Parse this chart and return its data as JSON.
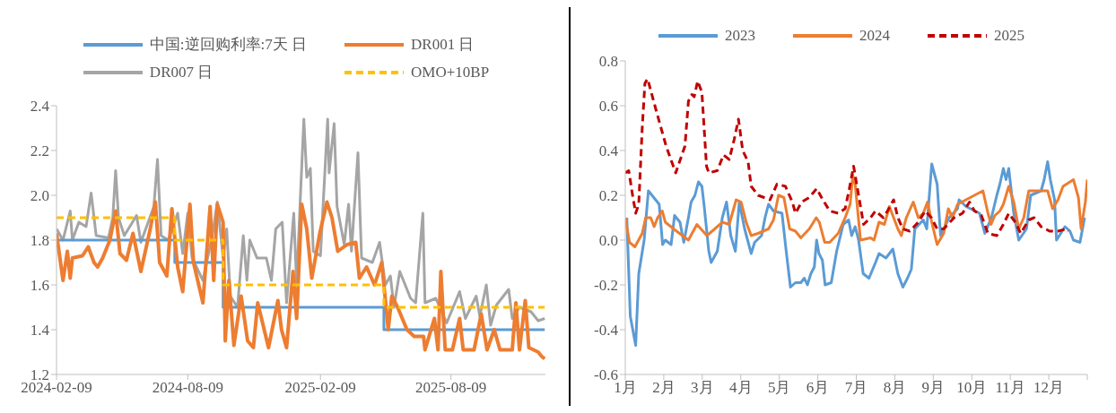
{
  "chart_data": [
    {
      "type": "line",
      "legend": "top",
      "grid": false,
      "marker": "none",
      "xlim": [
        "2024-02-09",
        "2025-12-18"
      ],
      "xticks": [
        "2024-02-09",
        "2024-08-09",
        "2025-02-09",
        "2025-08-09"
      ],
      "ylim": [
        1.2,
        2.4
      ],
      "yticks": [
        {
          "value": 1.2,
          "label": "1.2"
        },
        {
          "value": 1.4,
          "label": "1.4"
        },
        {
          "value": 1.6,
          "label": "1.6"
        },
        {
          "value": 1.8,
          "label": "1.8"
        },
        {
          "value": 2,
          "label": "2.0"
        },
        {
          "value": 2.2,
          "label": "2.2"
        },
        {
          "value": 2.4,
          "label": "2.4"
        }
      ],
      "series": [
        {
          "name": "中国:逆回购利率:7天 日",
          "type": "step",
          "color": "#5b9bd5",
          "line_style": "solid",
          "x": [
            "2024-02-09",
            "2024-07-22",
            "2024-09-27",
            "2025-05-08",
            "2025-12-17"
          ],
          "values": [
            1.8,
            1.7,
            1.5,
            1.4,
            1.4
          ]
        },
        {
          "name": "DR001 日",
          "color": "#ed7d31",
          "line_style": "solid",
          "x": [
            "2024-02-09",
            "2024-02-18",
            "2024-02-24",
            "2024-02-28",
            "2024-03-02",
            "2024-03-16",
            "2024-03-24",
            "2024-04-01",
            "2024-04-06",
            "2024-04-13",
            "2024-04-23",
            "2024-05-01",
            "2024-05-07",
            "2024-05-16",
            "2024-05-25",
            "2024-06-05",
            "2024-06-18",
            "2024-06-25",
            "2024-07-01",
            "2024-07-11",
            "2024-07-18",
            "2024-07-26",
            "2024-08-02",
            "2024-08-12",
            "2024-08-17",
            "2024-08-30",
            "2024-09-09",
            "2024-09-14",
            "2024-09-19",
            "2024-09-27",
            "2024-09-30",
            "2024-10-05",
            "2024-10-12",
            "2024-10-22",
            "2024-10-31",
            "2024-11-08",
            "2024-11-14",
            "2024-11-29",
            "2024-12-12",
            "2024-12-17",
            "2024-12-24",
            "2025-01-02",
            "2025-01-07",
            "2025-01-14",
            "2025-01-21",
            "2025-01-28",
            "2025-02-08",
            "2025-02-18",
            "2025-02-25",
            "2025-03-05",
            "2025-03-18",
            "2025-03-30",
            "2025-04-04",
            "2025-04-14",
            "2025-04-25",
            "2025-05-05",
            "2025-05-14",
            "2025-05-19",
            "2025-05-27",
            "2025-06-09",
            "2025-06-19",
            "2025-07-02",
            "2025-07-04",
            "2025-07-17",
            "2025-07-22",
            "2025-07-26",
            "2025-08-01",
            "2025-08-11",
            "2025-08-21",
            "2025-08-26",
            "2025-09-10",
            "2025-09-20",
            "2025-09-28",
            "2025-10-08",
            "2025-10-16",
            "2025-11-02",
            "2025-11-07",
            "2025-11-12",
            "2025-11-20",
            "2025-11-25",
            "2025-12-08",
            "2025-12-13",
            "2025-12-17"
          ],
          "values": [
            1.83,
            1.62,
            1.75,
            1.63,
            1.72,
            1.73,
            1.77,
            1.7,
            1.68,
            1.72,
            1.8,
            1.93,
            1.74,
            1.71,
            1.83,
            1.66,
            1.85,
            1.97,
            1.7,
            1.64,
            1.94,
            1.68,
            1.57,
            1.96,
            1.7,
            1.52,
            1.95,
            1.62,
            1.96,
            1.88,
            1.35,
            1.62,
            1.33,
            1.55,
            1.35,
            1.32,
            1.52,
            1.32,
            1.53,
            1.4,
            1.32,
            1.66,
            1.45,
            1.96,
            1.85,
            1.63,
            1.83,
            1.97,
            1.9,
            1.75,
            1.78,
            1.79,
            1.63,
            1.68,
            1.6,
            1.7,
            1.4,
            1.55,
            1.5,
            1.4,
            1.37,
            1.37,
            1.31,
            1.45,
            1.31,
            1.66,
            1.31,
            1.31,
            1.45,
            1.31,
            1.31,
            1.47,
            1.31,
            1.4,
            1.31,
            1.31,
            1.52,
            1.31,
            1.53,
            1.32,
            1.3,
            1.28,
            1.27
          ]
        },
        {
          "name": "DR007 日",
          "color": "#a5a5a5",
          "line_style": "solid",
          "x": [
            "2024-02-09",
            "2024-02-18",
            "2024-02-28",
            "2024-03-02",
            "2024-03-11",
            "2024-03-21",
            "2024-03-28",
            "2024-04-04",
            "2024-04-21",
            "2024-04-27",
            "2024-05-01",
            "2024-05-05",
            "2024-05-13",
            "2024-05-30",
            "2024-06-05",
            "2024-06-23",
            "2024-06-28",
            "2024-07-03",
            "2024-07-13",
            "2024-07-26",
            "2024-08-02",
            "2024-08-09",
            "2024-08-15",
            "2024-08-30",
            "2024-09-12",
            "2024-09-19",
            "2024-09-27",
            "2024-10-02",
            "2024-10-07",
            "2024-10-17",
            "2024-10-25",
            "2024-10-30",
            "2024-11-03",
            "2024-11-13",
            "2024-11-26",
            "2024-12-03",
            "2024-12-09",
            "2024-12-18",
            "2024-12-24",
            "2025-01-03",
            "2025-01-07",
            "2025-01-12",
            "2025-01-17",
            "2025-01-21",
            "2025-01-26",
            "2025-01-30",
            "2025-02-09",
            "2025-02-19",
            "2025-02-21",
            "2025-02-28",
            "2025-03-04",
            "2025-03-14",
            "2025-03-20",
            "2025-03-24",
            "2025-04-02",
            "2025-04-07",
            "2025-04-22",
            "2025-05-02",
            "2025-05-10",
            "2025-05-17",
            "2025-05-22",
            "2025-05-30",
            "2025-06-14",
            "2025-06-21",
            "2025-07-01",
            "2025-07-04",
            "2025-07-19",
            "2025-08-03",
            "2025-08-21",
            "2025-08-29",
            "2025-09-13",
            "2025-09-18",
            "2025-09-27",
            "2025-10-03",
            "2025-10-11",
            "2025-10-28",
            "2025-11-02",
            "2025-11-12",
            "2025-11-28",
            "2025-12-08",
            "2025-12-17"
          ],
          "values": [
            1.85,
            1.8,
            1.93,
            1.8,
            1.88,
            1.86,
            2.01,
            1.82,
            1.81,
            1.9,
            2.11,
            1.9,
            1.82,
            1.91,
            1.79,
            1.95,
            2.16,
            1.82,
            1.8,
            1.92,
            1.74,
            1.92,
            1.72,
            1.62,
            1.82,
            1.97,
            1.72,
            1.85,
            1.55,
            1.5,
            1.82,
            1.62,
            1.8,
            1.72,
            1.72,
            1.62,
            1.85,
            1.88,
            1.52,
            1.92,
            1.6,
            1.98,
            2.34,
            2.08,
            2.12,
            1.75,
            1.73,
            2.34,
            2.1,
            2.32,
            1.95,
            1.78,
            1.96,
            1.75,
            2.19,
            1.72,
            1.7,
            1.79,
            1.6,
            1.64,
            1.5,
            1.66,
            1.54,
            1.52,
            1.92,
            1.52,
            1.54,
            1.43,
            1.57,
            1.45,
            1.55,
            1.46,
            1.6,
            1.42,
            1.51,
            1.58,
            1.45,
            1.5,
            1.48,
            1.44,
            1.45
          ]
        },
        {
          "name": "OMO+10BP",
          "type": "step",
          "color": "#ffc000",
          "line_style": "dashed",
          "x": [
            "2024-02-09",
            "2024-07-22",
            "2024-09-27",
            "2025-05-08",
            "2025-12-17"
          ],
          "values": [
            1.9,
            1.8,
            1.6,
            1.5,
            1.5
          ]
        }
      ]
    },
    {
      "type": "line",
      "legend": "top",
      "grid": false,
      "marker": "none",
      "xlim": [
        1,
        13
      ],
      "xticks": [
        {
          "value": 1,
          "label": "1月"
        },
        {
          "value": 2,
          "label": "2月"
        },
        {
          "value": 3,
          "label": "3月"
        },
        {
          "value": 4,
          "label": "4月"
        },
        {
          "value": 5,
          "label": "5月"
        },
        {
          "value": 6,
          "label": "6月"
        },
        {
          "value": 7,
          "label": "7月"
        },
        {
          "value": 8,
          "label": "8月"
        },
        {
          "value": 9,
          "label": "9月"
        },
        {
          "value": 10,
          "label": "10月"
        },
        {
          "value": 11,
          "label": "11月"
        },
        {
          "value": 12,
          "label": "12月"
        },
        {
          "value": 13,
          "label": null
        }
      ],
      "ylim": [
        -0.6,
        0.8
      ],
      "yticks": [
        {
          "value": -0.6,
          "label": "-0.6"
        },
        {
          "value": -0.4,
          "label": "-0.4"
        },
        {
          "value": -0.2,
          "label": "-0.2"
        },
        {
          "value": 0,
          "label": "0.0"
        },
        {
          "value": 0.2,
          "label": "0.2"
        },
        {
          "value": 0.4,
          "label": "0.4"
        },
        {
          "value": 0.6,
          "label": "0.6"
        },
        {
          "value": 0.8,
          "label": "0.8"
        }
      ],
      "series": [
        {
          "name": "2023",
          "color": "#5b9bd5",
          "line_style": "solid",
          "x": [
            1.04,
            1.13,
            1.27,
            1.35,
            1.49,
            1.6,
            1.88,
            1.97,
            2.04,
            2.19,
            2.28,
            2.42,
            2.52,
            2.64,
            2.71,
            2.81,
            2.9,
            2.99,
            3.05,
            3.17,
            3.23,
            3.39,
            3.52,
            3.63,
            3.74,
            3.86,
            3.96,
            4.1,
            4.27,
            4.36,
            4.54,
            4.63,
            4.72,
            4.85,
            5.07,
            5.18,
            5.29,
            5.42,
            5.56,
            5.65,
            5.73,
            5.82,
            5.91,
            5.97,
            6.03,
            6.12,
            6.19,
            6.35,
            6.49,
            6.66,
            6.8,
            6.88,
            6.97,
            7.06,
            7.18,
            7.33,
            7.5,
            7.59,
            7.77,
            7.95,
            8.08,
            8.21,
            8.33,
            8.43,
            8.52,
            8.74,
            8.83,
            8.96,
            9.1,
            9.19,
            9.41,
            9.63,
            9.67,
            9.85,
            10.2,
            10.34,
            10.51,
            10.65,
            10.73,
            10.82,
            10.89,
            10.96,
            11.09,
            11.22,
            11.42,
            11.53,
            11.8,
            11.88,
            11.97,
            12.04,
            12.15,
            12.2,
            12.42,
            12.55,
            12.64,
            12.81,
            12.93
          ],
          "values": [
            0.1,
            -0.34,
            -0.47,
            -0.15,
            0,
            0.22,
            0.16,
            -0.02,
            0,
            -0.02,
            0.11,
            0.08,
            -0.01,
            0.1,
            0.17,
            0.2,
            0.26,
            0.24,
            0.15,
            -0.05,
            -0.1,
            -0.05,
            0.1,
            0.17,
            0.02,
            -0.05,
            0.17,
            0.05,
            -0.06,
            -0.01,
            0.02,
            0.1,
            0.16,
            0.13,
            0.12,
            -0.05,
            -0.21,
            -0.19,
            -0.19,
            -0.17,
            -0.2,
            -0.15,
            -0.12,
            0,
            -0.06,
            -0.09,
            -0.2,
            -0.19,
            -0.05,
            0.07,
            0.09,
            0.02,
            0.06,
            0,
            -0.15,
            -0.17,
            -0.1,
            -0.06,
            -0.08,
            -0.04,
            -0.15,
            -0.21,
            -0.17,
            -0.13,
            0.05,
            0.09,
            0.05,
            0.34,
            0.25,
            0.02,
            0.1,
            0.14,
            0.18,
            0.15,
            0.12,
            0.03,
            0.1,
            0.2,
            0.25,
            0.32,
            0.27,
            0.32,
            0.12,
            0,
            0.05,
            0.2,
            0.22,
            0.27,
            0.35,
            0.27,
            0.18,
            0,
            0.06,
            0.04,
            0,
            -0.01,
            0.1
          ]
        },
        {
          "name": "2024",
          "color": "#ed7d31",
          "line_style": "solid",
          "x": [
            1,
            1.11,
            1.25,
            1.44,
            1.53,
            1.66,
            1.75,
            1.84,
            1.96,
            2.04,
            2.33,
            2.64,
            2.86,
            3.12,
            3.39,
            3.52,
            3.7,
            3.88,
            4.01,
            4.14,
            4.27,
            4.45,
            4.72,
            4.85,
            4.98,
            5.12,
            5.27,
            5.42,
            5.56,
            5.78,
            5.96,
            6.04,
            6.18,
            6.31,
            6.53,
            6.71,
            6.84,
            6.91,
            6.97,
            7.11,
            7.37,
            7.46,
            7.59,
            7.73,
            7.86,
            7.97,
            8.08,
            8.17,
            8.3,
            8.48,
            8.61,
            8.74,
            8.85,
            8.96,
            9.1,
            9.27,
            9.39,
            9.5,
            9.63,
            10.29,
            10.42,
            10.5,
            10.6,
            10.73,
            10.82,
            10.96,
            11.09,
            11.22,
            11.35,
            11.48,
            11.7,
            11.97,
            12.1,
            12.24,
            12.37,
            12.55,
            12.64,
            12.77,
            12.84,
            12.95,
            13
          ],
          "values": [
            0.1,
            -0.01,
            -0.03,
            0.03,
            0.1,
            0.1,
            0.06,
            0.1,
            0.13,
            0.08,
            0.04,
            0,
            0.07,
            0.02,
            0.06,
            0.08,
            0.07,
            0.18,
            0.17,
            0.08,
            0.02,
            0.03,
            0.05,
            0.09,
            0.2,
            0.19,
            0.05,
            0.04,
            0.01,
            0.05,
            0.1,
            0.08,
            -0.01,
            -0.01,
            0.03,
            0.1,
            0.16,
            0.29,
            0.25,
            0,
            0.01,
            0,
            0.08,
            0.07,
            0.15,
            0.1,
            0.05,
            0.02,
            0.1,
            0.17,
            0.1,
            0.12,
            0.17,
            0.08,
            -0.02,
            0.03,
            0.14,
            0.1,
            0.16,
            0.22,
            0.12,
            0.07,
            0.11,
            0.13,
            0.16,
            0.24,
            0.17,
            0.05,
            0.1,
            0.22,
            0.22,
            0.22,
            0.14,
            0.18,
            0.24,
            0.26,
            0.27,
            0.19,
            0.05,
            0.17,
            0.27
          ]
        },
        {
          "name": "2025",
          "color": "#c00000",
          "line_style": "dashed",
          "x": [
            1,
            1.09,
            1.19,
            1.27,
            1.35,
            1.44,
            1.51,
            1.58,
            1.8,
            2.06,
            2.31,
            2.55,
            2.64,
            2.73,
            2.79,
            2.88,
            2.99,
            3.11,
            3.17,
            3.39,
            3.55,
            3.7,
            3.83,
            3.94,
            4.05,
            4.19,
            4.27,
            4.45,
            4.76,
            4.94,
            5.16,
            5.34,
            5.42,
            5.58,
            5.78,
            5.97,
            6.13,
            6.31,
            6.53,
            6.71,
            6.82,
            6.93,
            7.06,
            7.19,
            7.37,
            7.5,
            7.7,
            7.81,
            7.97,
            8.08,
            8.21,
            8.39,
            8.61,
            8.79,
            8.95,
            9.1,
            9.27,
            9.54,
            9.76,
            9.94,
            10.07,
            10.25,
            10.42,
            10.65,
            10.82,
            10.96,
            11.13,
            11.27,
            11.48,
            11.62,
            11.8,
            12.02,
            12.24,
            12.46,
            12.5
          ],
          "values": [
            0.3,
            0.31,
            0.2,
            0.12,
            0.16,
            0.5,
            0.7,
            0.72,
            0.58,
            0.42,
            0.3,
            0.42,
            0.62,
            0.65,
            0.64,
            0.71,
            0.66,
            0.33,
            0.3,
            0.31,
            0.38,
            0.36,
            0.45,
            0.54,
            0.4,
            0.35,
            0.24,
            0.2,
            0.18,
            0.25,
            0.24,
            0.17,
            0.12,
            0.17,
            0.19,
            0.23,
            0.18,
            0.13,
            0.12,
            0.14,
            0.23,
            0.33,
            0.2,
            0.07,
            0.1,
            0.13,
            0.1,
            0.13,
            0.18,
            0.1,
            0.05,
            0.04,
            0.08,
            0.13,
            0.1,
            0.05,
            0.05,
            0.1,
            0.12,
            0.17,
            0.13,
            0.11,
            0.03,
            0.02,
            0.07,
            0.12,
            0.08,
            0.03,
            0.09,
            0.1,
            0.06,
            0.04,
            0.04,
            0.05,
            0.04
          ]
        }
      ]
    }
  ]
}
